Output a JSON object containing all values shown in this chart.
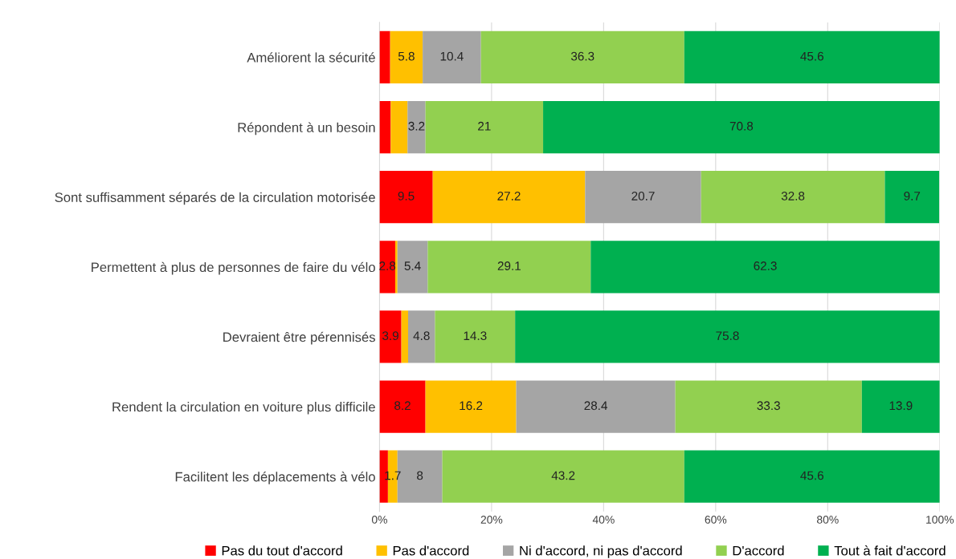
{
  "chart_data": {
    "type": "bar",
    "orientation": "horizontal",
    "stacked": true,
    "categories": [
      "Améliorent la sécurité",
      "Répondent à un besoin",
      "Sont suffisamment séparés de la circulation motorisée",
      "Permettent à plus de personnes de faire du vélo",
      "Devraient être pérennisés",
      "Rendent la circulation en voiture plus difficile",
      "Facilitent les déplacements à vélo"
    ],
    "series": [
      {
        "name": "Pas du tout d'accord",
        "color": "#ff0000",
        "values": [
          1.9,
          2.0,
          9.5,
          2.8,
          3.9,
          8.2,
          1.5
        ],
        "value_labels": [
          null,
          null,
          "9.5",
          "2.8",
          "3.9",
          "8.2",
          null
        ]
      },
      {
        "name": "Pas d'accord",
        "color": "#ffc000",
        "values": [
          5.8,
          3.0,
          27.2,
          0.4,
          1.2,
          16.2,
          1.7
        ],
        "value_labels": [
          "5.8",
          null,
          "27.2",
          null,
          null,
          "16.2",
          "1.7"
        ]
      },
      {
        "name": "Ni d'accord, ni pas d'accord",
        "color": "#a5a5a5",
        "values": [
          10.4,
          3.2,
          20.7,
          5.4,
          4.8,
          28.4,
          8
        ],
        "value_labels": [
          "10.4",
          "3.2",
          "20.7",
          "5.4",
          "4.8",
          "28.4",
          "8"
        ]
      },
      {
        "name": "D'accord",
        "color": "#92d050",
        "values": [
          36.3,
          21,
          32.8,
          29.1,
          14.3,
          33.3,
          43.2
        ],
        "value_labels": [
          "36.3",
          "21",
          "32.8",
          "29.1",
          "14.3",
          "33.3",
          "43.2"
        ]
      },
      {
        "name": "Tout à fait d'accord",
        "color": "#00b050",
        "values": [
          45.6,
          70.8,
          9.7,
          62.3,
          75.8,
          13.9,
          45.6
        ],
        "value_labels": [
          "45.6",
          "70.8",
          "9.7",
          "62.3",
          "75.8",
          "13.9",
          "45.6"
        ]
      }
    ],
    "xlim": [
      0,
      100
    ],
    "xticks": [
      {
        "value": 0,
        "label": "0%"
      },
      {
        "value": 20,
        "label": "20%"
      },
      {
        "value": 40,
        "label": "40%"
      },
      {
        "value": 60,
        "label": "60%"
      },
      {
        "value": 80,
        "label": "80%"
      },
      {
        "value": 100,
        "label": "100%"
      }
    ],
    "grid": "x",
    "legend": "bottom"
  }
}
